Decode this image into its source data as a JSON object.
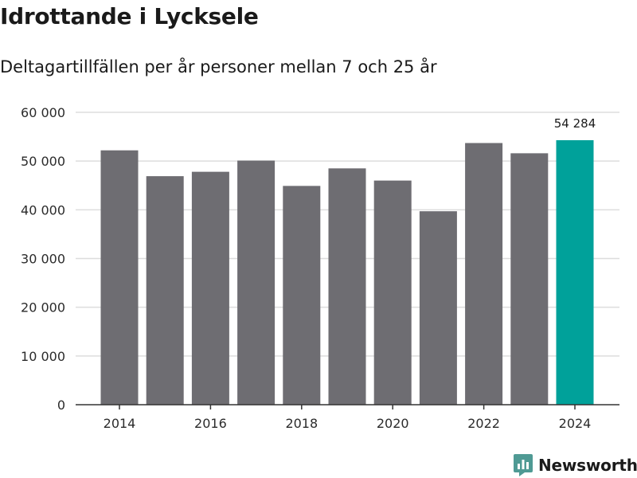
{
  "title": "Idrottande i Lycksele",
  "subtitle": "Deltagartillfällen per år personer mellan 7 och 25 år",
  "brand": {
    "name": "Newsworthy",
    "icon": "newsworthy-logo-icon",
    "color": "#4f9a94"
  },
  "chart_data": {
    "type": "bar",
    "title": "Idrottande i Lycksele",
    "subtitle": "Deltagartillfällen per år personer mellan 7 och 25 år",
    "xlabel": "",
    "ylabel": "",
    "categories": [
      2014,
      2015,
      2016,
      2017,
      2018,
      2019,
      2020,
      2021,
      2022,
      2023,
      2024
    ],
    "values": [
      52200,
      46900,
      47800,
      50100,
      44900,
      48500,
      46000,
      39700,
      53700,
      51600,
      54284
    ],
    "highlight_index": 10,
    "highlight_label": "54 284",
    "colors": {
      "bar": "#6e6d72",
      "highlight": "#00a19a",
      "grid": "#dddddd",
      "axis": "#333333"
    },
    "ylim": [
      0,
      60000
    ],
    "yticks": [
      0,
      10000,
      20000,
      30000,
      40000,
      50000,
      60000
    ],
    "ytick_labels": [
      "0",
      "10 000",
      "20 000",
      "30 000",
      "40 000",
      "50 000",
      "60 000"
    ],
    "xticks": [
      2014,
      2016,
      2018,
      2020,
      2022,
      2024
    ],
    "xtick_labels": [
      "2014",
      "2016",
      "2018",
      "2020",
      "2022",
      "2024"
    ],
    "grid": true,
    "legend": "none"
  }
}
